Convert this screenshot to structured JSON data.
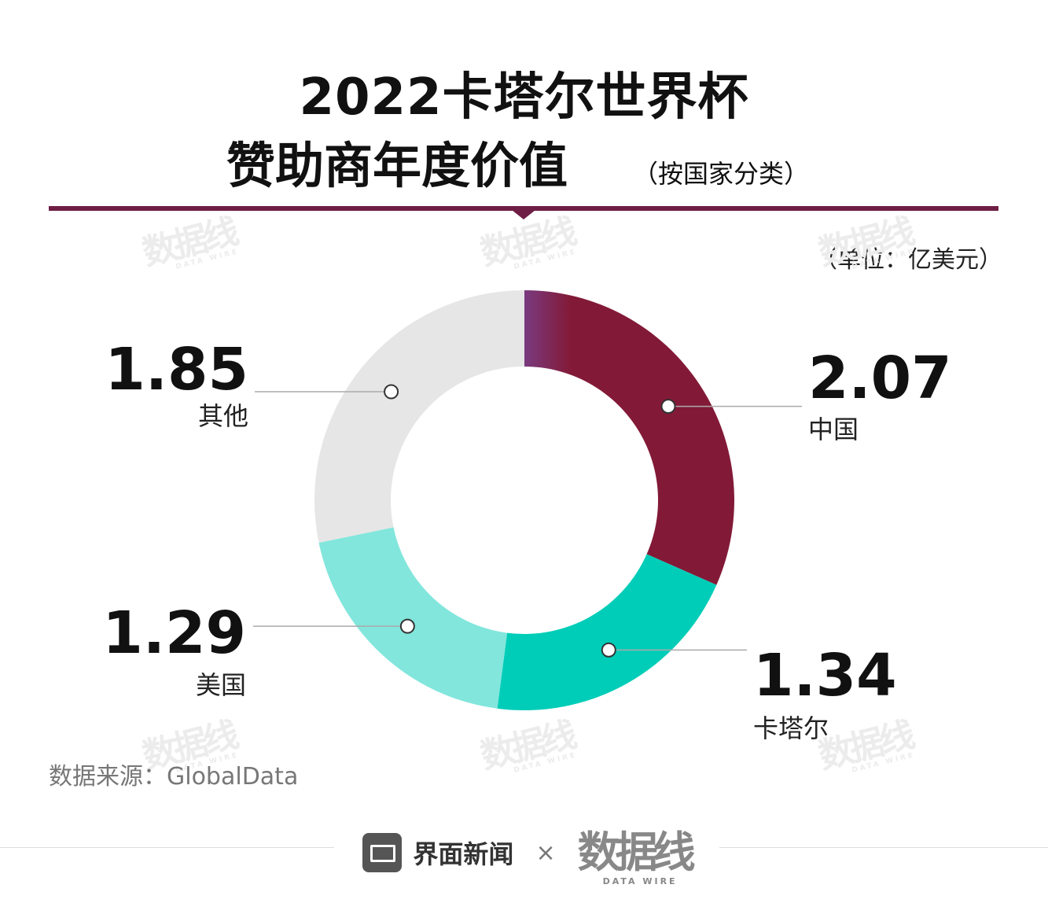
{
  "title_line1": "2022卡塔尔世界杯",
  "title_line2": "赞助商年度价值",
  "subtitle": "（按国家分类）",
  "unit": "（单位：亿美元）",
  "source": "数据来源：GlobalData",
  "footer": {
    "brand1": "界面新闻",
    "separator": "×",
    "brand2": "数据线",
    "brand2_sub": "DATA WIRE"
  },
  "watermark": {
    "text": "数据线",
    "sub": "DATA WIRE"
  },
  "colors": {
    "china": "#821a37",
    "china_gradient_start": "#7a3a7f",
    "qatar": "#00cdb8",
    "usa": "#82e6dc",
    "other": "#e6e6e6",
    "rule": "#6e1e45"
  },
  "chart_data": {
    "type": "pie",
    "donut": true,
    "unit": "亿美元",
    "categories": [
      "中国",
      "卡塔尔",
      "美国",
      "其他"
    ],
    "values": [
      2.07,
      1.34,
      1.29,
      1.85
    ],
    "value_labels": [
      "2.07",
      "1.34",
      "1.29",
      "1.85"
    ],
    "start": "12 o'clock",
    "direction": "clockwise"
  }
}
